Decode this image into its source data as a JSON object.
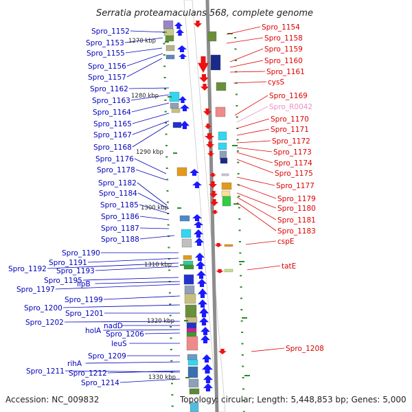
{
  "title": "Serratia proteamaculans 568, complete genome",
  "footer": {
    "accession": "Accession: NC_009832",
    "topology": "Topology: circular; Length: 5,448,853 bp; Genes: 5,000"
  },
  "colors": {
    "left_label": "#0000bb",
    "right_label": "#dd0000",
    "rna_label": "#f08fbf",
    "forward_arrow": "#1a1aff",
    "reverse_arrow": "#ee1111",
    "backbone": "#888888",
    "tick": "#2a8a2a"
  },
  "kbp_ticks": [
    "1270 kbp",
    "1280 kbp",
    "1290 kbp",
    "1300 kbp",
    "1310 kbp",
    "1320 kbp",
    "1330 kbp"
  ],
  "left_labels": [
    "Spro_1152",
    "Spro_1153",
    "Spro_1155",
    "Spro_1156",
    "Spro_1157",
    "Spro_1162",
    "Spro_1163",
    "Spro_1164",
    "Spro_1165",
    "Spro_1167",
    "Spro_1168",
    "Spro_1176",
    "Spro_1178",
    "Spro_1182",
    "Spro_1184",
    "Spro_1185",
    "Spro_1186",
    "Spro_1187",
    "Spro_1188",
    "Spro_1190",
    "Spro_1191",
    "Spro_1192",
    "Spro_1193",
    "Spro_1195",
    "lipB",
    "Spro_1197",
    "Spro_1199",
    "Spro_1200",
    "Spro_1201",
    "Spro_1202",
    "nadD",
    "holA",
    "Spro_1206",
    "leuS",
    "Spro_1209",
    "rihA",
    "Spro_1212",
    "Spro_1211",
    "Spro_1214"
  ],
  "right_labels": [
    "Spro_1154",
    "Spro_1158",
    "Spro_1159",
    "Spro_1160",
    "Spro_1161",
    "cysS",
    "Spro_1169",
    "Spro_R0042",
    "Spro_1170",
    "Spro_1171",
    "Spro_1172",
    "Spro_1173",
    "Spro_1174",
    "Spro_1175",
    "Spro_1177",
    "Spro_1179",
    "Spro_1180",
    "Spro_1181",
    "Spro_1183",
    "cspE",
    "tatE",
    "Spro_1208"
  ]
}
